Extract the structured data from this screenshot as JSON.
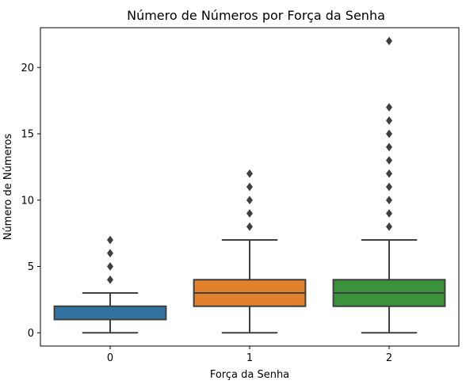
{
  "chart_data": {
    "type": "box",
    "title": "Número de Números por Força da Senha",
    "xlabel": "Força da Senha",
    "ylabel": "Número de Números",
    "categories": [
      "0",
      "1",
      "2"
    ],
    "ylim": [
      -1,
      23
    ],
    "yticks": [
      0,
      5,
      10,
      15,
      20
    ],
    "grid": false,
    "boxes": [
      {
        "category": "0",
        "whisker_low": 0,
        "q1": 1,
        "median": 1,
        "q3": 2,
        "whisker_high": 3,
        "outliers": [
          4,
          5,
          6,
          7
        ],
        "color": "#3274a1"
      },
      {
        "category": "1",
        "whisker_low": 0,
        "q1": 2,
        "median": 3,
        "q3": 4,
        "whisker_high": 7,
        "outliers": [
          8,
          9,
          10,
          11,
          12
        ],
        "color": "#e1812c"
      },
      {
        "category": "2",
        "whisker_low": 0,
        "q1": 2,
        "median": 3,
        "q3": 4,
        "whisker_high": 7,
        "outliers": [
          8,
          9,
          10,
          11,
          12,
          13,
          14,
          15,
          16,
          17,
          22
        ],
        "color": "#3a923a"
      }
    ],
    "line_color": "#3f3f3f"
  }
}
